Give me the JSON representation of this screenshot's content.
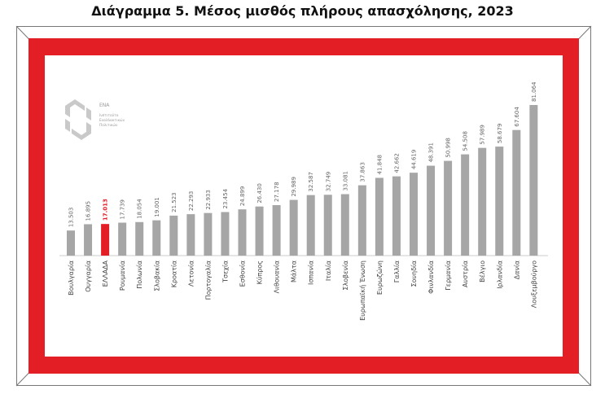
{
  "page": {
    "title": "Διάγραμμα 5. Μέσος μισθός πλήρους απασχόλησης, 2023"
  },
  "logo": {
    "icon": "ena-logo-icon",
    "name": "ΕΝΑ",
    "subtitle_lines": [
      "Ινστιτούτο",
      "Εναλλακτικών",
      "Πολιτικών"
    ]
  },
  "colors": {
    "frame": "#e31e24",
    "bar": "#a6a6a6",
    "highlight": "#e31e24",
    "label": "#666666"
  },
  "chart_data": {
    "type": "bar",
    "title": "",
    "xlabel": "",
    "ylabel": "",
    "highlight_category": "ΕΛΛΑΔΑ",
    "ylim": [
      0,
      85000
    ],
    "grid": false,
    "categories": [
      "Βουλγαρία",
      "Ουγγαρία",
      "ΕΛΛΑΔΑ",
      "Ρουμανία",
      "Πολωνία",
      "Σλοβακία",
      "Κροατία",
      "Λετονία",
      "Πορτογαλία",
      "Τσεχία",
      "Εσθονία",
      "Κύπρος",
      "Λιθουανία",
      "Μάλτα",
      "Ισπανία",
      "Ιταλία",
      "Σλοβενία",
      "Ευρωπαϊκή Ένωση",
      "Ευρωζώνη",
      "Γαλλία",
      "Σουηδία",
      "Φινλανδία",
      "Γερμανία",
      "Αυστρία",
      "Βέλγιο",
      "Ιρλανδία",
      "Δανία",
      "Λουξεμβούργο"
    ],
    "values": [
      13503,
      16895,
      17013,
      17739,
      18054,
      19001,
      21523,
      22293,
      22933,
      23454,
      24899,
      26430,
      27178,
      29989,
      32587,
      32749,
      33081,
      37863,
      41848,
      42662,
      44619,
      48391,
      50998,
      54508,
      57989,
      58679,
      67604,
      81064
    ],
    "value_labels": [
      "13.503",
      "16.895",
      "17.013",
      "17.739",
      "18.054",
      "19.001",
      "21.523",
      "22.293",
      "22.933",
      "23.454",
      "24.899",
      "26.430",
      "27.178",
      "29.989",
      "32.587",
      "32.749",
      "33.081",
      "37.863",
      "41.848",
      "42.662",
      "44.619",
      "48.391",
      "50.998",
      "54.508",
      "57.989",
      "58.679",
      "67.604",
      "81.064"
    ]
  }
}
